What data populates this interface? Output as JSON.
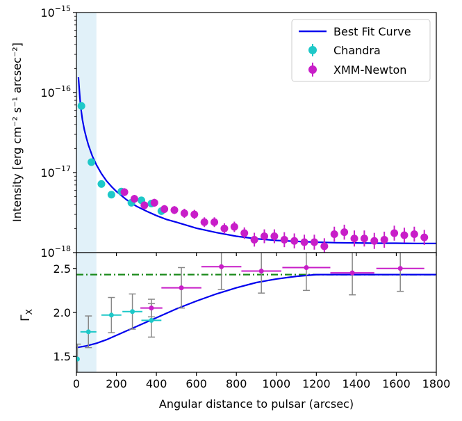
{
  "chart_data": [
    {
      "type": "scatter",
      "panel": "top",
      "yscale": "log",
      "xlim": [
        0,
        1800
      ],
      "ylim": [
        1e-18,
        1e-15
      ],
      "ylabel": "Intensity [erg cm⁻² s⁻¹ arcsec⁻²]",
      "y_ticks": [
        {
          "value": 1e-15,
          "base": "10",
          "exp": "−15"
        },
        {
          "value": 1e-16,
          "base": "10",
          "exp": "−16"
        },
        {
          "value": 1e-17,
          "base": "10",
          "exp": "−17"
        },
        {
          "value": 1e-18,
          "base": "10",
          "exp": "−18"
        }
      ],
      "shaded_region": [
        0,
        100
      ],
      "legend": {
        "position": "top-right",
        "entries": [
          {
            "label": "Best Fit Curve",
            "kind": "line",
            "color": "#0000ee"
          },
          {
            "label": "Chandra",
            "kind": "marker",
            "color": "#1ec8c8"
          },
          {
            "label": "XMM-Newton",
            "kind": "marker",
            "color": "#c81ec8"
          }
        ]
      },
      "series": [
        {
          "name": "Chandra",
          "color": "#1ec8c8",
          "x": [
            25,
            75,
            125,
            175,
            225,
            275,
            325,
            375,
            425
          ],
          "y": [
            6.8e-17,
            1.35e-17,
            7.2e-18,
            5.3e-18,
            5.8e-18,
            4.2e-18,
            4.5e-18,
            4.1e-18,
            3.3e-18
          ],
          "yerr_factor": [
            1.08,
            1.07,
            1.07,
            1.07,
            1.06,
            1.07,
            1.07,
            1.07,
            1.08
          ]
        },
        {
          "name": "XMM-Newton",
          "color": "#c81ec8",
          "x": [
            240,
            290,
            340,
            390,
            440,
            490,
            540,
            590,
            640,
            690,
            740,
            790,
            840,
            890,
            940,
            990,
            1040,
            1090,
            1140,
            1190,
            1240,
            1290,
            1340,
            1390,
            1440,
            1490,
            1540,
            1590,
            1640,
            1690,
            1740
          ],
          "y": [
            5.7e-18,
            4.7e-18,
            3.9e-18,
            4.2e-18,
            3.5e-18,
            3.4e-18,
            3.1e-18,
            3e-18,
            2.4e-18,
            2.4e-18,
            2e-18,
            2.1e-18,
            1.75e-18,
            1.45e-18,
            1.6e-18,
            1.6e-18,
            1.45e-18,
            1.4e-18,
            1.35e-18,
            1.35e-18,
            1.2e-18,
            1.7e-18,
            1.8e-18,
            1.5e-18,
            1.5e-18,
            1.4e-18,
            1.45e-18,
            1.75e-18,
            1.65e-18,
            1.7e-18,
            1.55e-18
          ],
          "yerr_factor": [
            1.12,
            1.12,
            1.12,
            1.12,
            1.12,
            1.12,
            1.14,
            1.14,
            1.15,
            1.15,
            1.16,
            1.16,
            1.18,
            1.22,
            1.22,
            1.22,
            1.24,
            1.24,
            1.24,
            1.24,
            1.26,
            1.24,
            1.24,
            1.26,
            1.26,
            1.26,
            1.26,
            1.24,
            1.24,
            1.24,
            1.24
          ]
        },
        {
          "name": "Best Fit Curve",
          "color": "#0000ee",
          "x": [
            10,
            15,
            20,
            30,
            40,
            50,
            60,
            80,
            100,
            125,
            150,
            175,
            200,
            250,
            300,
            350,
            400,
            450,
            500,
            600,
            700,
            800,
            900,
            1000,
            1100,
            1200,
            1300,
            1400,
            1500,
            1600,
            1700,
            1800
          ],
          "y": [
            1.55e-16,
            1.05e-16,
            7e-17,
            4.6e-17,
            3.4e-17,
            2.7e-17,
            2.2e-17,
            1.6e-17,
            1.25e-17,
            9.7e-18,
            7.9e-18,
            6.7e-18,
            5.8e-18,
            4.6e-18,
            3.8e-18,
            3.3e-18,
            2.9e-18,
            2.6e-18,
            2.4e-18,
            2.02e-18,
            1.78e-18,
            1.6e-18,
            1.49e-18,
            1.42e-18,
            1.38e-18,
            1.35e-18,
            1.33e-18,
            1.32e-18,
            1.31e-18,
            1.31e-18,
            1.3e-18,
            1.3e-18
          ]
        }
      ]
    },
    {
      "type": "scatter",
      "panel": "bottom",
      "xlim": [
        0,
        1800
      ],
      "ylim": [
        1.32,
        2.68
      ],
      "xlabel": "Angular distance to pulsar (arcsec)",
      "ylabel_base": "Γ",
      "ylabel_sub": "X",
      "x_ticks": [
        "0",
        "200",
        "400",
        "600",
        "800",
        "1000",
        "1200",
        "1400",
        "1600",
        "1800"
      ],
      "y_ticks": [
        "1.5",
        "2.0",
        "2.5"
      ],
      "shaded_region": [
        0,
        100
      ],
      "reference_line": {
        "y": 2.43,
        "style": "dash-dot",
        "color": "#1a8a1a"
      },
      "series": [
        {
          "name": "Chandra",
          "color": "#1ec8c8",
          "x": [
            5,
            60,
            175,
            280,
            375
          ],
          "xerr": [
            10,
            40,
            50,
            50,
            50
          ],
          "y": [
            1.47,
            1.78,
            1.97,
            2.01,
            1.91
          ],
          "yerr": [
            0.17,
            0.18,
            0.2,
            0.2,
            0.19
          ]
        },
        {
          "name": "XMM-Newton",
          "color": "#c81ec8",
          "x": [
            375,
            525,
            725,
            925,
            1150,
            1380,
            1620
          ],
          "xerr": [
            55,
            100,
            100,
            100,
            120,
            110,
            120
          ],
          "y": [
            2.05,
            2.28,
            2.52,
            2.47,
            2.51,
            2.45,
            2.5
          ],
          "yerr": [
            0.1,
            0.23,
            0.26,
            0.25,
            0.26,
            0.25,
            0.26
          ]
        },
        {
          "name": "Best Fit Curve",
          "color": "#0000ee",
          "x": [
            0,
            50,
            100,
            150,
            200,
            300,
            400,
            500,
            600,
            700,
            800,
            900,
            1000,
            1100,
            1200,
            1300,
            1400,
            1500,
            1600,
            1700,
            1800
          ],
          "y": [
            1.6,
            1.62,
            1.65,
            1.69,
            1.74,
            1.84,
            1.94,
            2.04,
            2.13,
            2.21,
            2.28,
            2.34,
            2.38,
            2.41,
            2.43,
            2.43,
            2.43,
            2.43,
            2.43,
            2.43,
            2.43
          ]
        }
      ]
    }
  ]
}
